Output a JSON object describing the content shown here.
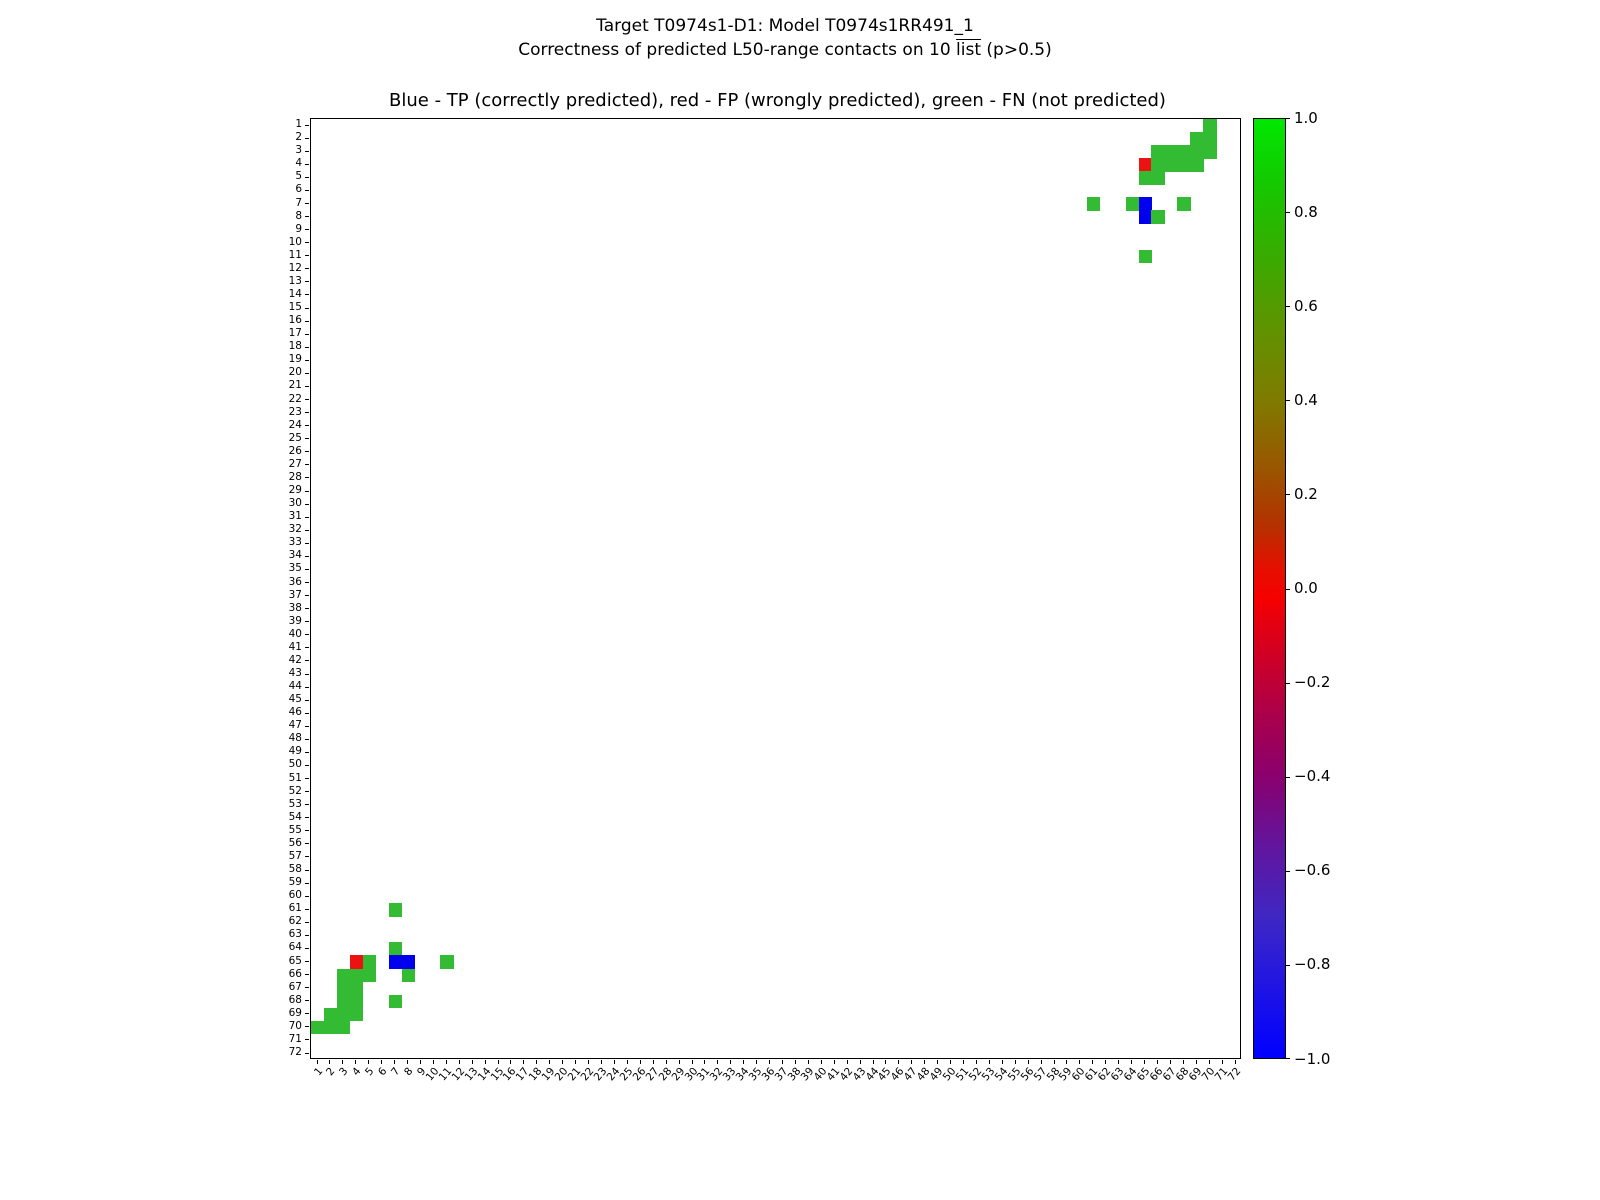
{
  "figure": {
    "title_line1": "Target T0974s1-D1: Model T0974s1RR491_1",
    "title_line2_prefix": "Correctness of predicted L50-range contacts on 10 ",
    "title_line2_overline": "list",
    "title_line2_suffix": " (p>0.5)",
    "axes_title": "Blue - TP (correctly predicted), red - FP (wrongly predicted), green - FN (not predicted)"
  },
  "chart_data": {
    "type": "heatmap",
    "title": "Blue - TP (correctly predicted), red - FP (wrongly predicted), green - FN (not predicted)",
    "grid_size": 72,
    "x_ticks": [
      1,
      2,
      3,
      4,
      5,
      6,
      7,
      8,
      9,
      10,
      11,
      12,
      13,
      14,
      15,
      16,
      17,
      18,
      19,
      20,
      21,
      22,
      23,
      24,
      25,
      26,
      27,
      28,
      29,
      30,
      31,
      32,
      33,
      34,
      35,
      36,
      37,
      38,
      39,
      40,
      41,
      42,
      43,
      44,
      45,
      46,
      47,
      48,
      49,
      50,
      51,
      52,
      53,
      54,
      55,
      56,
      57,
      58,
      59,
      60,
      61,
      62,
      63,
      64,
      65,
      66,
      67,
      68,
      69,
      70,
      71,
      72
    ],
    "y_ticks": [
      1,
      2,
      3,
      4,
      5,
      6,
      7,
      8,
      9,
      10,
      11,
      12,
      13,
      14,
      15,
      16,
      17,
      18,
      19,
      20,
      21,
      22,
      23,
      24,
      25,
      26,
      27,
      28,
      29,
      30,
      31,
      32,
      33,
      34,
      35,
      36,
      37,
      38,
      39,
      40,
      41,
      42,
      43,
      44,
      45,
      46,
      47,
      48,
      49,
      50,
      51,
      52,
      53,
      54,
      55,
      56,
      57,
      58,
      59,
      60,
      61,
      62,
      63,
      64,
      65,
      66,
      67,
      68,
      69,
      70,
      71,
      72
    ],
    "colors": {
      "TP": "#0000ee",
      "FP": "#ee1111",
      "FN": "#33bb33"
    },
    "cells": [
      [
        1,
        70,
        "FN"
      ],
      [
        2,
        69,
        "FN"
      ],
      [
        2,
        70,
        "FN"
      ],
      [
        3,
        66,
        "FN"
      ],
      [
        3,
        67,
        "FN"
      ],
      [
        3,
        68,
        "FN"
      ],
      [
        3,
        69,
        "FN"
      ],
      [
        3,
        70,
        "FN"
      ],
      [
        4,
        65,
        "FP"
      ],
      [
        4,
        66,
        "FN"
      ],
      [
        4,
        67,
        "FN"
      ],
      [
        4,
        68,
        "FN"
      ],
      [
        4,
        69,
        "FN"
      ],
      [
        5,
        65,
        "FN"
      ],
      [
        5,
        66,
        "FN"
      ],
      [
        7,
        61,
        "FN"
      ],
      [
        7,
        64,
        "FN"
      ],
      [
        7,
        65,
        "TP"
      ],
      [
        7,
        68,
        "FN"
      ],
      [
        8,
        65,
        "TP"
      ],
      [
        8,
        66,
        "FN"
      ],
      [
        11,
        65,
        "FN"
      ],
      [
        61,
        7,
        "FN"
      ],
      [
        64,
        7,
        "FN"
      ],
      [
        65,
        4,
        "FP"
      ],
      [
        65,
        5,
        "FN"
      ],
      [
        65,
        7,
        "TP"
      ],
      [
        65,
        8,
        "TP"
      ],
      [
        65,
        11,
        "FN"
      ],
      [
        66,
        3,
        "FN"
      ],
      [
        66,
        4,
        "FN"
      ],
      [
        66,
        5,
        "FN"
      ],
      [
        66,
        8,
        "FN"
      ],
      [
        67,
        3,
        "FN"
      ],
      [
        67,
        4,
        "FN"
      ],
      [
        68,
        3,
        "FN"
      ],
      [
        68,
        4,
        "FN"
      ],
      [
        68,
        7,
        "FN"
      ],
      [
        69,
        2,
        "FN"
      ],
      [
        69,
        3,
        "FN"
      ],
      [
        69,
        4,
        "FN"
      ],
      [
        70,
        1,
        "FN"
      ],
      [
        70,
        2,
        "FN"
      ],
      [
        70,
        3,
        "FN"
      ]
    ],
    "colorbar": {
      "range": [
        -1.0,
        1.0
      ],
      "tick_labels": [
        "1.0",
        "0.8",
        "0.6",
        "0.4",
        "0.2",
        "0.0",
        "−0.2",
        "−0.4",
        "−0.6",
        "−0.8",
        "−1.0"
      ],
      "tick_values": [
        1.0,
        0.8,
        0.6,
        0.4,
        0.2,
        0.0,
        -0.2,
        -0.4,
        -0.6,
        -0.8,
        -1.0
      ],
      "gradient": [
        {
          "pos": 0,
          "color": "#00e800"
        },
        {
          "pos": 7,
          "color": "#15c800"
        },
        {
          "pos": 15,
          "color": "#3aaa00"
        },
        {
          "pos": 23,
          "color": "#639100"
        },
        {
          "pos": 30,
          "color": "#7f7a00"
        },
        {
          "pos": 37,
          "color": "#995700"
        },
        {
          "pos": 43,
          "color": "#b23300"
        },
        {
          "pos": 48,
          "color": "#e60f00"
        },
        {
          "pos": 51,
          "color": "#f60000"
        },
        {
          "pos": 56,
          "color": "#d6001e"
        },
        {
          "pos": 63,
          "color": "#ad0048"
        },
        {
          "pos": 70,
          "color": "#8a006e"
        },
        {
          "pos": 77,
          "color": "#64149b"
        },
        {
          "pos": 85,
          "color": "#3f27c4"
        },
        {
          "pos": 93,
          "color": "#1d13e6"
        },
        {
          "pos": 100,
          "color": "#0000ff"
        }
      ]
    }
  }
}
